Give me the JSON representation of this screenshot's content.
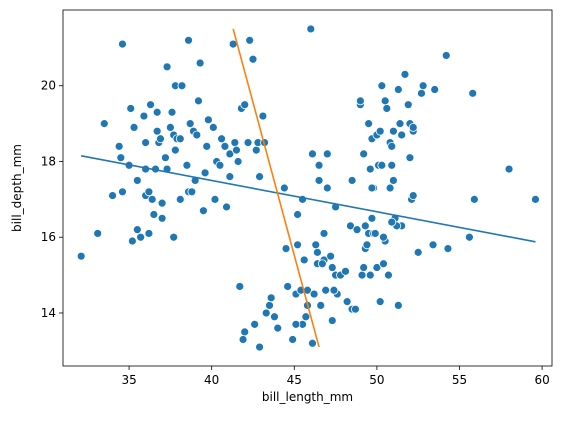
{
  "chart_data": {
    "type": "scatter",
    "title": "",
    "xlabel": "bill_length_mm",
    "ylabel": "bill_depth_mm",
    "xlim": [
      31.0,
      60.6
    ],
    "ylim": [
      12.6,
      22.0
    ],
    "xticks": [
      35,
      40,
      45,
      50,
      55,
      60
    ],
    "yticks": [
      14,
      16,
      18,
      20
    ],
    "grid": false,
    "colors": {
      "points": "#1f77b4",
      "fit_line": "#1f77b4",
      "second_line": "#ff7f0e"
    },
    "points": [
      [
        32.1,
        15.5
      ],
      [
        33.1,
        16.1
      ],
      [
        33.5,
        19.0
      ],
      [
        34.0,
        17.1
      ],
      [
        34.4,
        18.4
      ],
      [
        34.5,
        18.1
      ],
      [
        34.6,
        17.2
      ],
      [
        34.6,
        21.1
      ],
      [
        35.0,
        17.9
      ],
      [
        35.1,
        19.4
      ],
      [
        35.2,
        15.9
      ],
      [
        35.3,
        18.9
      ],
      [
        35.5,
        16.2
      ],
      [
        35.5,
        17.5
      ],
      [
        35.7,
        16.0
      ],
      [
        35.9,
        19.2
      ],
      [
        36.0,
        18.5
      ],
      [
        36.0,
        17.1
      ],
      [
        36.0,
        17.8
      ],
      [
        36.2,
        16.1
      ],
      [
        36.2,
        17.2
      ],
      [
        36.3,
        19.5
      ],
      [
        36.4,
        17.0
      ],
      [
        36.5,
        16.6
      ],
      [
        36.6,
        17.8
      ],
      [
        36.7,
        18.8
      ],
      [
        36.7,
        19.3
      ],
      [
        36.8,
        18.5
      ],
      [
        36.9,
        18.6
      ],
      [
        37.0,
        16.9
      ],
      [
        37.0,
        16.5
      ],
      [
        37.2,
        18.1
      ],
      [
        37.3,
        17.8
      ],
      [
        37.3,
        20.5
      ],
      [
        37.5,
        18.9
      ],
      [
        37.6,
        19.3
      ],
      [
        37.7,
        18.7
      ],
      [
        37.7,
        16.0
      ],
      [
        37.8,
        18.3
      ],
      [
        37.8,
        20.0
      ],
      [
        37.9,
        18.6
      ],
      [
        38.1,
        18.6
      ],
      [
        38.1,
        17.0
      ],
      [
        38.2,
        20.0
      ],
      [
        38.5,
        17.9
      ],
      [
        38.6,
        21.2
      ],
      [
        38.6,
        17.2
      ],
      [
        38.7,
        19.0
      ],
      [
        38.8,
        17.2
      ],
      [
        38.9,
        18.8
      ],
      [
        39.0,
        17.5
      ],
      [
        39.1,
        18.7
      ],
      [
        39.2,
        19.6
      ],
      [
        39.3,
        20.6
      ],
      [
        39.5,
        16.7
      ],
      [
        39.6,
        17.7
      ],
      [
        39.7,
        18.4
      ],
      [
        39.8,
        19.1
      ],
      [
        40.1,
        18.9
      ],
      [
        40.2,
        17.0
      ],
      [
        40.3,
        18.0
      ],
      [
        40.5,
        17.9
      ],
      [
        40.6,
        18.6
      ],
      [
        40.8,
        18.4
      ],
      [
        40.9,
        16.8
      ],
      [
        41.1,
        17.6
      ],
      [
        41.1,
        18.2
      ],
      [
        41.3,
        21.1
      ],
      [
        41.4,
        18.5
      ],
      [
        41.5,
        18.3
      ],
      [
        41.6,
        18.0
      ],
      [
        41.8,
        19.4
      ],
      [
        42.0,
        19.5
      ],
      [
        42.2,
        18.5
      ],
      [
        42.3,
        21.2
      ],
      [
        42.5,
        20.7
      ],
      [
        42.7,
        18.3
      ],
      [
        42.8,
        18.5
      ],
      [
        42.9,
        17.6
      ],
      [
        43.1,
        19.2
      ],
      [
        43.2,
        18.5
      ],
      [
        41.7,
        14.7
      ],
      [
        42.0,
        13.5
      ],
      [
        42.9,
        13.1
      ],
      [
        43.3,
        14.0
      ],
      [
        43.5,
        14.2
      ],
      [
        44.0,
        13.6
      ],
      [
        44.4,
        17.3
      ],
      [
        44.5,
        15.7
      ],
      [
        44.9,
        13.3
      ],
      [
        45.1,
        14.5
      ],
      [
        45.2,
        15.8
      ],
      [
        45.4,
        14.6
      ],
      [
        45.5,
        13.7
      ],
      [
        45.7,
        13.9
      ],
      [
        45.8,
        14.6
      ],
      [
        46.1,
        13.2
      ],
      [
        46.2,
        14.5
      ],
      [
        46.4,
        15.6
      ],
      [
        46.5,
        17.9
      ],
      [
        46.6,
        14.2
      ],
      [
        46.8,
        15.4
      ],
      [
        46.9,
        14.6
      ],
      [
        47.0,
        17.3
      ],
      [
        47.2,
        15.5
      ],
      [
        47.3,
        13.8
      ],
      [
        47.5,
        15.0
      ],
      [
        47.6,
        14.5
      ],
      [
        47.8,
        15.0
      ],
      [
        48.1,
        15.1
      ],
      [
        48.2,
        14.3
      ],
      [
        48.4,
        16.3
      ],
      [
        48.5,
        14.1
      ],
      [
        48.7,
        14.1
      ],
      [
        48.8,
        16.2
      ],
      [
        49.0,
        19.5
      ],
      [
        49.1,
        15.0
      ],
      [
        49.2,
        15.2
      ],
      [
        49.3,
        15.7
      ],
      [
        49.4,
        15.8
      ],
      [
        49.5,
        16.1
      ],
      [
        49.6,
        15.0
      ],
      [
        49.7,
        18.6
      ],
      [
        49.8,
        16.1
      ],
      [
        49.9,
        16.1
      ],
      [
        50.0,
        15.2
      ],
      [
        50.2,
        14.3
      ],
      [
        50.4,
        15.3
      ],
      [
        50.5,
        15.9
      ],
      [
        50.7,
        15.0
      ],
      [
        50.8,
        17.3
      ],
      [
        51.1,
        16.5
      ],
      [
        51.3,
        14.2
      ],
      [
        51.5,
        16.3
      ],
      [
        52.1,
        17.0
      ],
      [
        52.2,
        17.1
      ],
      [
        52.5,
        15.6
      ],
      [
        53.4,
        15.8
      ],
      [
        54.3,
        15.7
      ],
      [
        55.8,
        19.8
      ],
      [
        55.9,
        17.0
      ],
      [
        58.0,
        17.8
      ],
      [
        59.6,
        17.0
      ],
      [
        55.6,
        16.0
      ],
      [
        45.5,
        17.0
      ],
      [
        45.2,
        16.6
      ],
      [
        46.0,
        21.5
      ],
      [
        46.1,
        18.2
      ],
      [
        46.5,
        17.5
      ],
      [
        47.0,
        18.2
      ],
      [
        47.5,
        16.8
      ],
      [
        48.5,
        17.5
      ],
      [
        49.0,
        19.6
      ],
      [
        49.2,
        18.2
      ],
      [
        49.5,
        19.0
      ],
      [
        49.8,
        17.3
      ],
      [
        50.0,
        18.7
      ],
      [
        50.2,
        18.8
      ],
      [
        50.3,
        20.0
      ],
      [
        50.5,
        19.6
      ],
      [
        50.6,
        19.4
      ],
      [
        50.8,
        18.5
      ],
      [
        51.0,
        18.8
      ],
      [
        51.3,
        19.9
      ],
      [
        51.4,
        19.0
      ],
      [
        51.5,
        18.7
      ],
      [
        51.7,
        20.3
      ],
      [
        51.9,
        19.5
      ],
      [
        52.0,
        18.1
      ],
      [
        52.0,
        19.0
      ],
      [
        52.2,
        18.8
      ],
      [
        52.7,
        19.8
      ],
      [
        52.8,
        20.0
      ],
      [
        53.5,
        19.9
      ],
      [
        54.2,
        20.8
      ],
      [
        50.9,
        17.9
      ],
      [
        49.7,
        17.3
      ],
      [
        50.1,
        17.9
      ],
      [
        51.0,
        17.5
      ],
      [
        51.2,
        16.3
      ],
      [
        49.6,
        17.8
      ],
      [
        50.3,
        17.9
      ],
      [
        50.9,
        18.4
      ],
      [
        52.2,
        18.9
      ],
      [
        49.3,
        16.3
      ],
      [
        49.7,
        16.5
      ],
      [
        50.4,
        16.0
      ],
      [
        50.9,
        16.4
      ],
      [
        46.4,
        15.3
      ],
      [
        46.8,
        16.1
      ],
      [
        47.4,
        14.6
      ],
      [
        46.7,
        15.3
      ],
      [
        47.3,
        15.2
      ],
      [
        45.6,
        15.4
      ],
      [
        45.8,
        14.2
      ],
      [
        46.3,
        15.8
      ],
      [
        45.1,
        13.7
      ],
      [
        44.6,
        14.7
      ],
      [
        43.6,
        14.4
      ],
      [
        43.8,
        13.9
      ],
      [
        42.6,
        13.7
      ],
      [
        41.9,
        13.3
      ]
    ],
    "lines": [
      {
        "x": [
          32.1,
          59.6
        ],
        "y": [
          18.15,
          15.88
        ]
      },
      {
        "x": [
          41.3,
          46.5
        ],
        "y": [
          21.5,
          13.1
        ]
      }
    ]
  }
}
